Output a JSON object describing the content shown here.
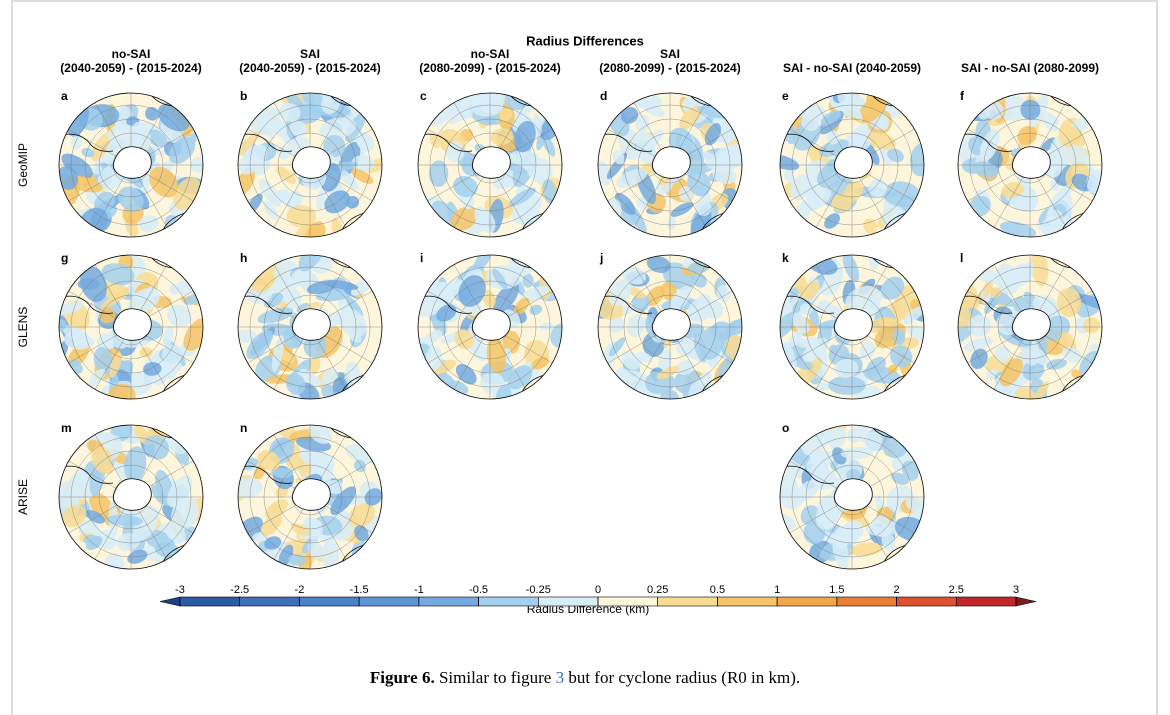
{
  "figure": {
    "title": "Radius Differences",
    "columns": [
      [
        "no-SAI",
        "(2040-2059) - (2015-2024)"
      ],
      [
        "SAI",
        "(2040-2059) - (2015-2024)"
      ],
      [
        "no-SAI",
        "(2080-2099) - (2015-2024)"
      ],
      [
        "SAI",
        "(2080-2099) - (2015-2024)"
      ],
      [
        "SAI - no-SAI (2040-2059)"
      ],
      [
        "SAI - no-SAI (2080-2099)"
      ]
    ],
    "rows": [
      {
        "name": "GeoMIP",
        "panels": [
          "a",
          "b",
          "c",
          "d",
          "e",
          "f"
        ]
      },
      {
        "name": "GLENS",
        "panels": [
          "g",
          "h",
          "i",
          "j",
          "k",
          "l"
        ]
      },
      {
        "name": "ARISE",
        "panels": [
          "m",
          "n",
          null,
          null,
          "o",
          null
        ]
      }
    ],
    "colorbar": {
      "label": "Radius Difference (km)",
      "ticks": [
        -3,
        -2.5,
        -2,
        -1.5,
        -1,
        -0.5,
        -0.25,
        0,
        0.25,
        0.5,
        1,
        1.5,
        2,
        2.5,
        3
      ],
      "colors": [
        "#2b5aa6",
        "#3d6fbb",
        "#4c82c8",
        "#5f95d4",
        "#74aadf",
        "#a3d0ee",
        "#d8edf8",
        "#fdf7d9",
        "#f9dc93",
        "#f6c466",
        "#f3a647",
        "#ec7d34",
        "#df5230",
        "#c1272b"
      ],
      "under_color": "#1f3f86",
      "over_color": "#7a1c1c"
    },
    "caption": {
      "label": "Figure 6.",
      "before": "Similar to figure",
      "ref": "3",
      "after": "but for cyclone radius (R0 in km)."
    }
  }
}
